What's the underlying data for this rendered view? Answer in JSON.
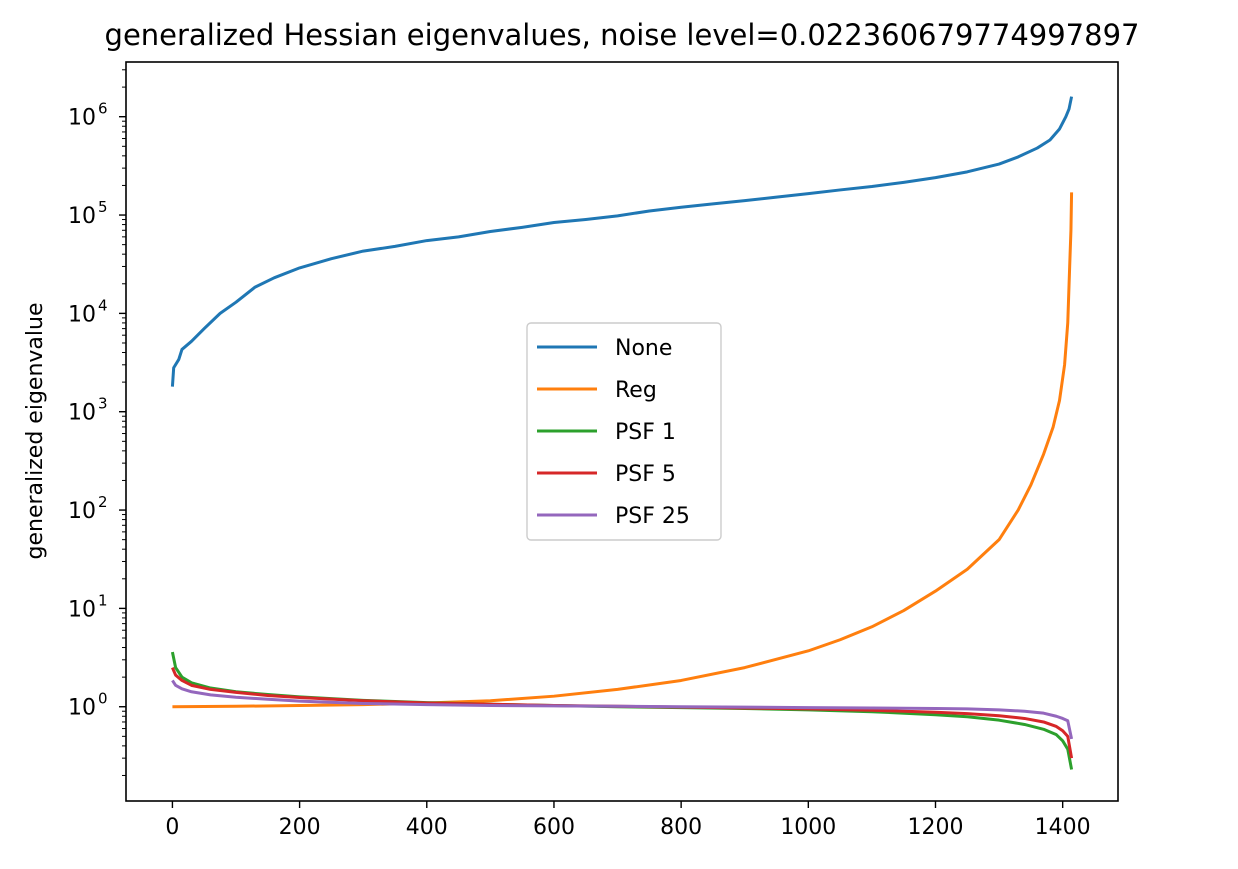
{
  "chart_data": {
    "type": "line",
    "title": "generalized Hessian eigenvalues, noise level=0.022360679774997897",
    "xlabel": "",
    "ylabel": "generalized eigenvalue",
    "xlim": [
      -73,
      1487
    ],
    "ylim": [
      0.11,
      3600000.0
    ],
    "yscale": "log",
    "xticks": [
      0,
      200,
      400,
      600,
      800,
      1000,
      1200,
      1400
    ],
    "yticks": [
      {
        "base": "10",
        "exp": "0",
        "value": 1
      },
      {
        "base": "10",
        "exp": "1",
        "value": 10
      },
      {
        "base": "10",
        "exp": "2",
        "value": 100
      },
      {
        "base": "10",
        "exp": "3",
        "value": 1000
      },
      {
        "base": "10",
        "exp": "4",
        "value": 10000
      },
      {
        "base": "10",
        "exp": "5",
        "value": 100000
      },
      {
        "base": "10",
        "exp": "6",
        "value": 1000000
      }
    ],
    "legend_position": "center",
    "grid": false,
    "series": [
      {
        "name": "None",
        "color": "#1f77b4",
        "points": [
          [
            0,
            1800
          ],
          [
            2,
            2800
          ],
          [
            10,
            3400
          ],
          [
            15,
            4300
          ],
          [
            30,
            5200
          ],
          [
            50,
            7000
          ],
          [
            75,
            10000
          ],
          [
            100,
            13000
          ],
          [
            130,
            18500
          ],
          [
            160,
            23000
          ],
          [
            200,
            29000
          ],
          [
            250,
            36000
          ],
          [
            300,
            43000
          ],
          [
            350,
            48000
          ],
          [
            400,
            55000
          ],
          [
            450,
            60000
          ],
          [
            500,
            68000
          ],
          [
            550,
            75000
          ],
          [
            600,
            84000
          ],
          [
            650,
            90000
          ],
          [
            700,
            98000
          ],
          [
            750,
            110000
          ],
          [
            800,
            120000
          ],
          [
            850,
            130000
          ],
          [
            900,
            140000
          ],
          [
            950,
            152000
          ],
          [
            1000,
            165000
          ],
          [
            1050,
            180000
          ],
          [
            1100,
            195000
          ],
          [
            1150,
            215000
          ],
          [
            1200,
            240000
          ],
          [
            1250,
            275000
          ],
          [
            1300,
            330000
          ],
          [
            1330,
            390000
          ],
          [
            1360,
            480000
          ],
          [
            1380,
            580000
          ],
          [
            1395,
            750000
          ],
          [
            1405,
            1000000
          ],
          [
            1410,
            1200000
          ],
          [
            1414,
            1600000
          ]
        ]
      },
      {
        "name": "Reg",
        "color": "#ff7f0e",
        "points": [
          [
            0,
            1.0
          ],
          [
            100,
            1.01
          ],
          [
            200,
            1.03
          ],
          [
            300,
            1.05
          ],
          [
            400,
            1.09
          ],
          [
            500,
            1.15
          ],
          [
            600,
            1.28
          ],
          [
            700,
            1.5
          ],
          [
            800,
            1.85
          ],
          [
            900,
            2.5
          ],
          [
            1000,
            3.7
          ],
          [
            1050,
            4.8
          ],
          [
            1100,
            6.5
          ],
          [
            1150,
            9.5
          ],
          [
            1200,
            15
          ],
          [
            1250,
            25
          ],
          [
            1300,
            50
          ],
          [
            1330,
            100
          ],
          [
            1350,
            180
          ],
          [
            1370,
            370
          ],
          [
            1385,
            700
          ],
          [
            1395,
            1300
          ],
          [
            1403,
            3000
          ],
          [
            1408,
            8000
          ],
          [
            1411,
            30000
          ],
          [
            1413,
            70000
          ],
          [
            1414,
            170000
          ]
        ]
      },
      {
        "name": "PSF 1",
        "color": "#2ca02c",
        "points": [
          [
            0,
            3.6
          ],
          [
            5,
            2.5
          ],
          [
            15,
            2.0
          ],
          [
            30,
            1.75
          ],
          [
            60,
            1.55
          ],
          [
            100,
            1.42
          ],
          [
            150,
            1.33
          ],
          [
            200,
            1.26
          ],
          [
            300,
            1.16
          ],
          [
            400,
            1.1
          ],
          [
            500,
            1.06
          ],
          [
            600,
            1.03
          ],
          [
            700,
            1.0
          ],
          [
            800,
            0.98
          ],
          [
            900,
            0.96
          ],
          [
            1000,
            0.93
          ],
          [
            1100,
            0.89
          ],
          [
            1200,
            0.83
          ],
          [
            1250,
            0.79
          ],
          [
            1300,
            0.73
          ],
          [
            1340,
            0.66
          ],
          [
            1370,
            0.59
          ],
          [
            1390,
            0.52
          ],
          [
            1400,
            0.45
          ],
          [
            1408,
            0.37
          ],
          [
            1414,
            0.23
          ]
        ]
      },
      {
        "name": "PSF 5",
        "color": "#d62728",
        "points": [
          [
            0,
            2.5
          ],
          [
            5,
            2.1
          ],
          [
            15,
            1.85
          ],
          [
            30,
            1.65
          ],
          [
            60,
            1.5
          ],
          [
            100,
            1.4
          ],
          [
            150,
            1.3
          ],
          [
            200,
            1.24
          ],
          [
            300,
            1.15
          ],
          [
            400,
            1.09
          ],
          [
            500,
            1.06
          ],
          [
            600,
            1.03
          ],
          [
            700,
            1.01
          ],
          [
            800,
            0.99
          ],
          [
            900,
            0.97
          ],
          [
            1000,
            0.95
          ],
          [
            1100,
            0.92
          ],
          [
            1200,
            0.88
          ],
          [
            1250,
            0.85
          ],
          [
            1300,
            0.81
          ],
          [
            1340,
            0.76
          ],
          [
            1370,
            0.7
          ],
          [
            1390,
            0.63
          ],
          [
            1400,
            0.57
          ],
          [
            1408,
            0.5
          ],
          [
            1414,
            0.3
          ]
        ]
      },
      {
        "name": "PSF 25",
        "color": "#9467bd",
        "points": [
          [
            0,
            1.85
          ],
          [
            5,
            1.65
          ],
          [
            15,
            1.52
          ],
          [
            30,
            1.42
          ],
          [
            60,
            1.32
          ],
          [
            100,
            1.25
          ],
          [
            150,
            1.19
          ],
          [
            200,
            1.14
          ],
          [
            300,
            1.08
          ],
          [
            400,
            1.05
          ],
          [
            500,
            1.03
          ],
          [
            600,
            1.02
          ],
          [
            700,
            1.01
          ],
          [
            800,
            1.0
          ],
          [
            900,
            0.99
          ],
          [
            1000,
            0.98
          ],
          [
            1100,
            0.97
          ],
          [
            1200,
            0.96
          ],
          [
            1250,
            0.95
          ],
          [
            1300,
            0.93
          ],
          [
            1340,
            0.9
          ],
          [
            1370,
            0.86
          ],
          [
            1390,
            0.8
          ],
          [
            1400,
            0.76
          ],
          [
            1408,
            0.72
          ],
          [
            1414,
            0.47
          ]
        ]
      }
    ]
  }
}
